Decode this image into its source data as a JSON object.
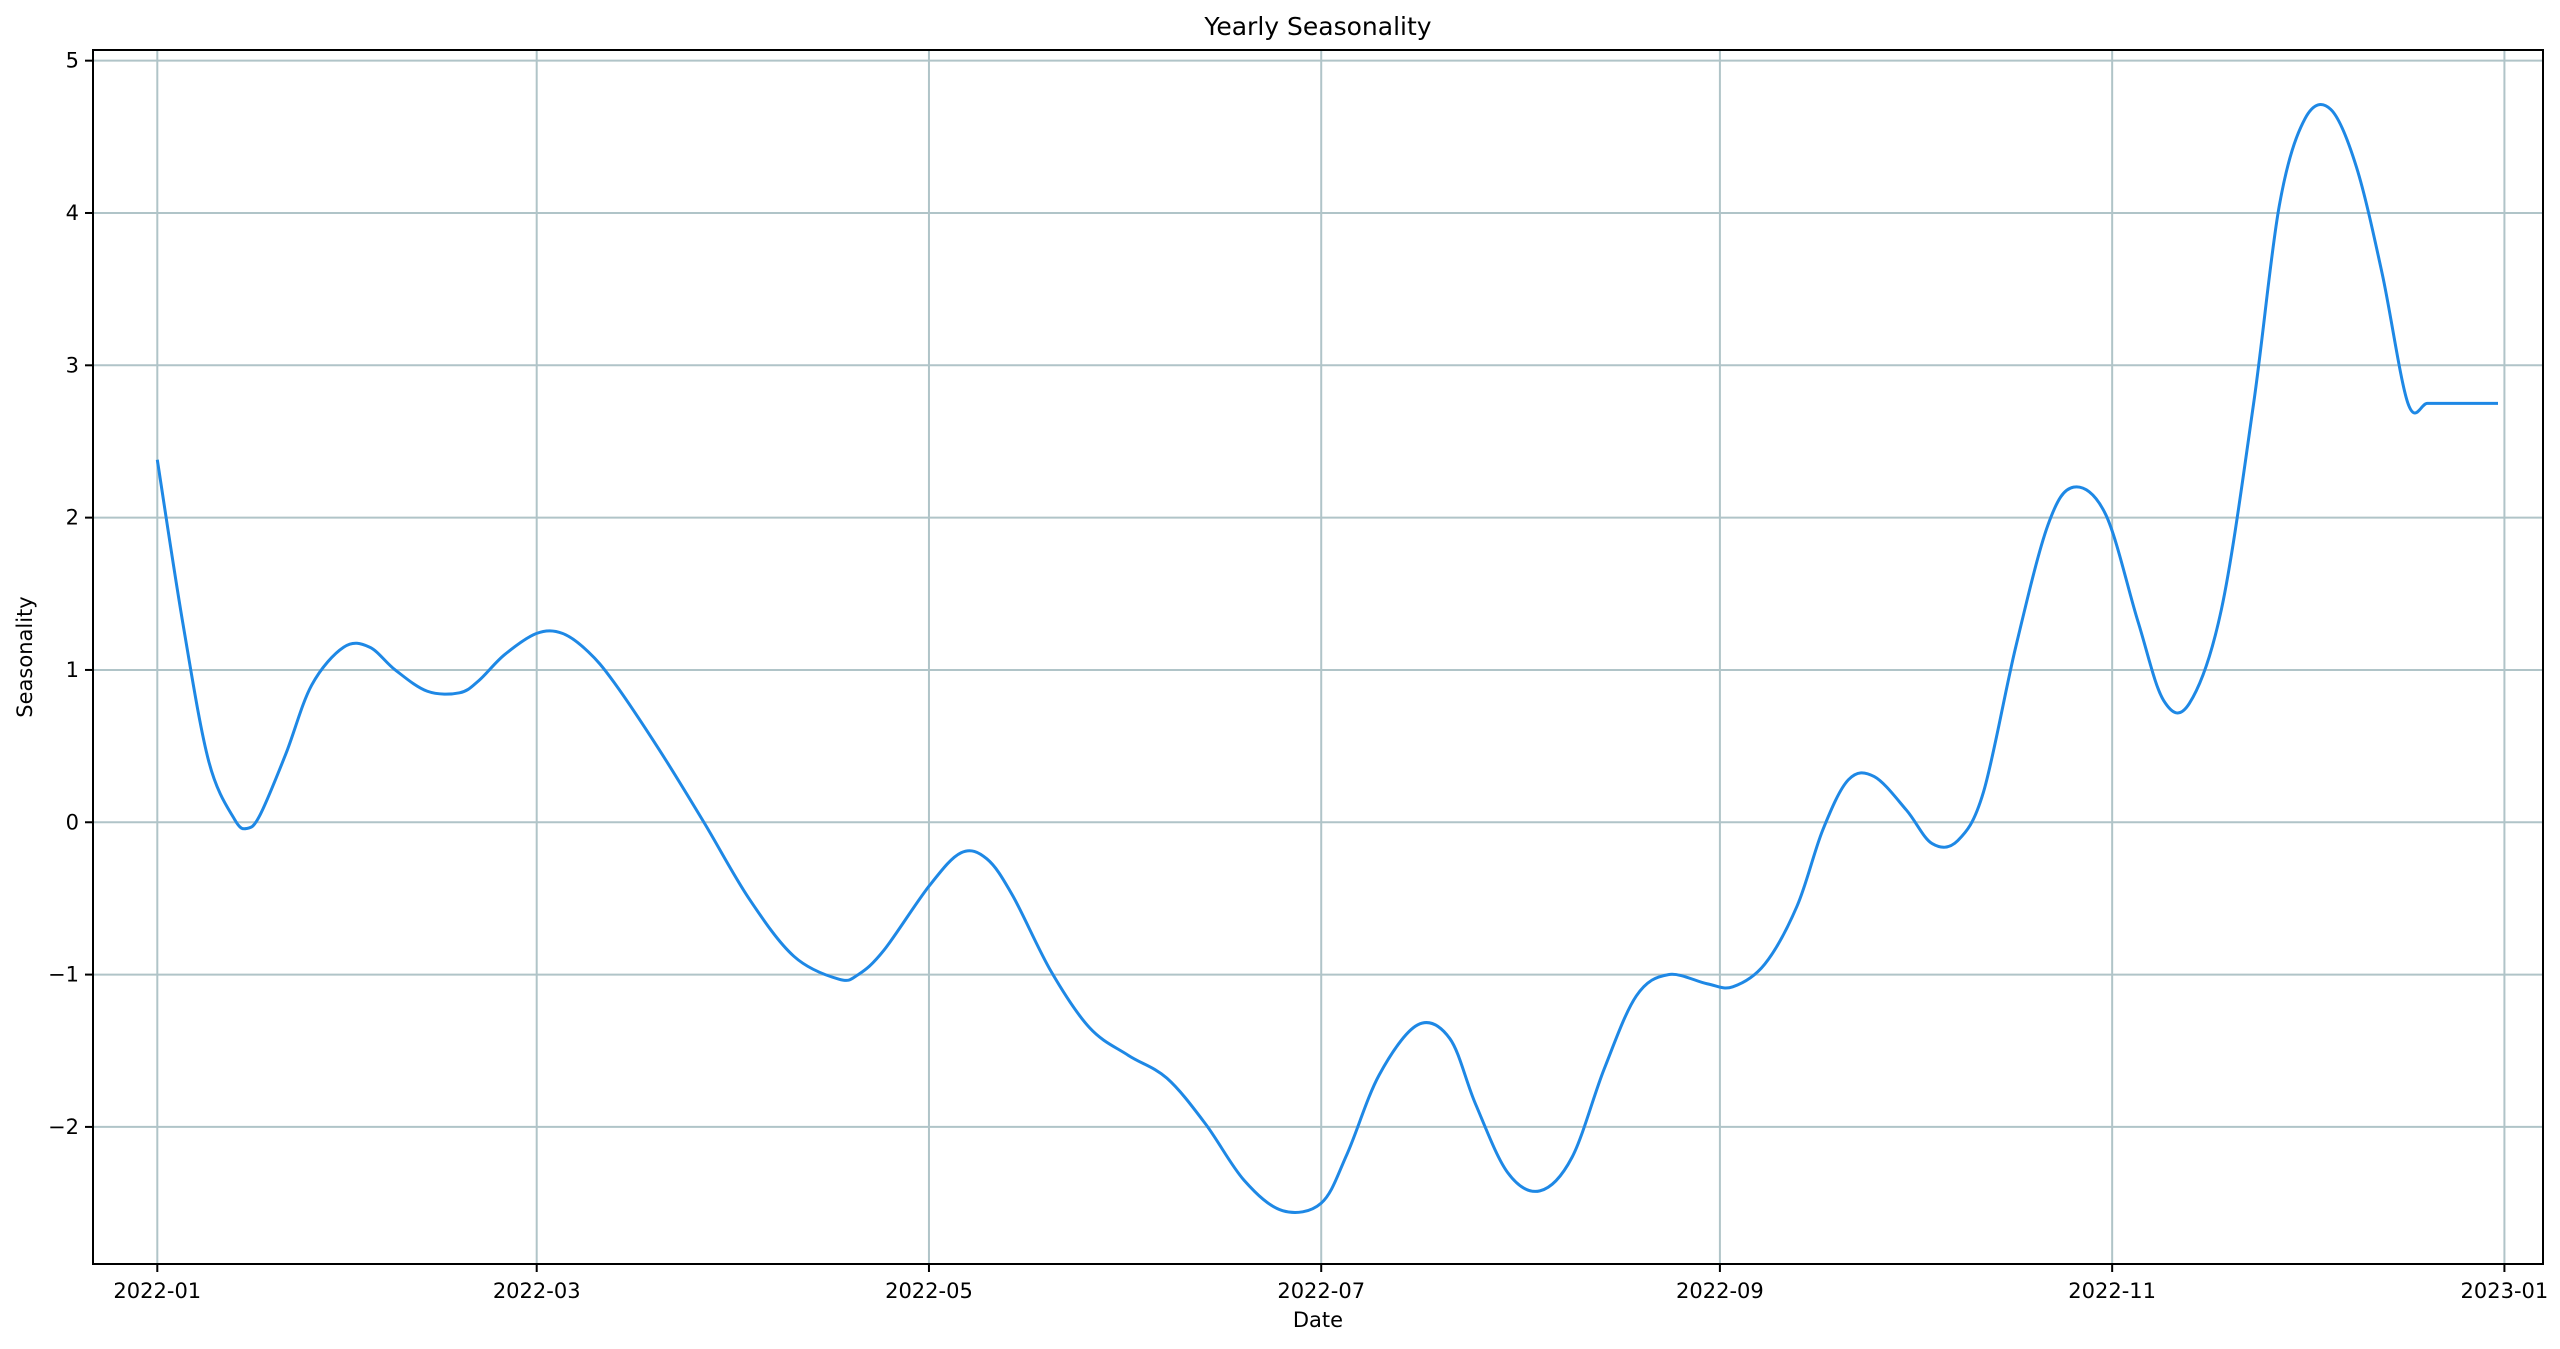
{
  "chart_data": {
    "type": "line",
    "title": "Yearly Seasonality",
    "xlabel": "Date",
    "ylabel": "Seasonality",
    "x_ticks": [
      "2022-01",
      "2022-03",
      "2022-05",
      "2022-07",
      "2022-09",
      "2022-11",
      "2023-01"
    ],
    "y_ticks": [
      "−2",
      "−1",
      "0",
      "1",
      "2",
      "3",
      "4",
      "5"
    ],
    "ylim": [
      -2.9,
      5.07
    ],
    "xlim": [
      "2021-12-22",
      "2023-01-07"
    ],
    "grid": true,
    "colors": {
      "line": "#1e88e5",
      "grid": "#b0c4c8",
      "axes": "#000000"
    },
    "series": [
      {
        "x": [
          "2022-01-01",
          "2022-01-05",
          "2022-01-09",
          "2022-01-13",
          "2022-01-15",
          "2022-01-17",
          "2022-01-21",
          "2022-01-25",
          "2022-01-30",
          "2022-02-03",
          "2022-02-07",
          "2022-02-12",
          "2022-02-17",
          "2022-02-20",
          "2022-02-24",
          "2022-03-01",
          "2022-03-05",
          "2022-03-09",
          "2022-03-13",
          "2022-03-20",
          "2022-03-27",
          "2022-04-03",
          "2022-04-10",
          "2022-04-17",
          "2022-04-20",
          "2022-04-24",
          "2022-05-01",
          "2022-05-06",
          "2022-05-10",
          "2022-05-14",
          "2022-05-20",
          "2022-05-26",
          "2022-06-01",
          "2022-06-07",
          "2022-06-13",
          "2022-06-19",
          "2022-06-25",
          "2022-07-01",
          "2022-07-05",
          "2022-07-10",
          "2022-07-16",
          "2022-07-21",
          "2022-07-25",
          "2022-07-30",
          "2022-08-04",
          "2022-08-09",
          "2022-08-14",
          "2022-08-19",
          "2022-08-24",
          "2022-08-30",
          "2022-09-03",
          "2022-09-08",
          "2022-09-13",
          "2022-09-17",
          "2022-09-21",
          "2022-09-25",
          "2022-09-30",
          "2022-10-04",
          "2022-10-08",
          "2022-10-12",
          "2022-10-17",
          "2022-10-22",
          "2022-10-26",
          "2022-10-31",
          "2022-11-05",
          "2022-11-09",
          "2022-11-13",
          "2022-11-18",
          "2022-11-23",
          "2022-11-27",
          "2022-12-01",
          "2022-12-05",
          "2022-12-09",
          "2022-12-13",
          "2022-12-17",
          "2022-12-20",
          "2022-12-23",
          "2022-12-26",
          "2022-12-29",
          "2022-12-31"
        ],
        "values": [
          2.38,
          1.3,
          0.4,
          0.02,
          -0.04,
          0.05,
          0.45,
          0.9,
          1.15,
          1.15,
          1.0,
          0.86,
          0.85,
          0.93,
          1.1,
          1.24,
          1.24,
          1.12,
          0.92,
          0.48,
          0.0,
          -0.5,
          -0.88,
          -1.03,
          -1.0,
          -0.84,
          -0.42,
          -0.2,
          -0.24,
          -0.48,
          -0.98,
          -1.35,
          -1.53,
          -1.68,
          -1.98,
          -2.35,
          -2.55,
          -2.5,
          -2.18,
          -1.66,
          -1.33,
          -1.42,
          -1.85,
          -2.3,
          -2.42,
          -2.2,
          -1.62,
          -1.14,
          -1.0,
          -1.06,
          -1.08,
          -0.93,
          -0.55,
          -0.05,
          0.28,
          0.3,
          0.08,
          -0.14,
          -0.12,
          0.2,
          1.15,
          1.95,
          2.2,
          2.02,
          1.32,
          0.8,
          0.78,
          1.4,
          2.75,
          4.05,
          4.62,
          4.68,
          4.3,
          3.6,
          2.75,
          2.75,
          2.75,
          2.75,
          2.75,
          2.75
        ]
      }
    ]
  }
}
